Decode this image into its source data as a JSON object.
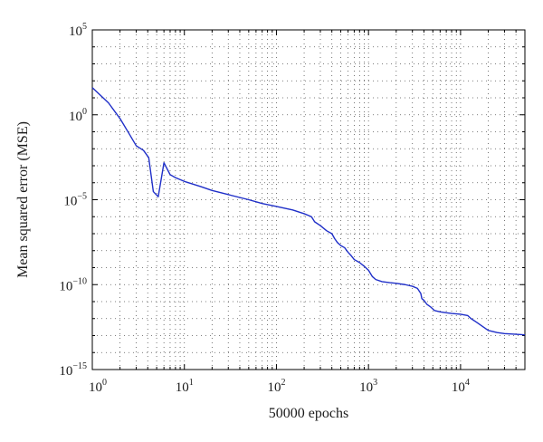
{
  "chart_data": {
    "type": "line",
    "title": "",
    "xlabel": "50000 epochs",
    "ylabel": "Mean squared error (MSE)",
    "x_scale": "log",
    "y_scale": "log",
    "xlim": [
      1,
      50000
    ],
    "ylim": [
      1e-15,
      100000
    ],
    "x_tick_labels": [
      {
        "base": "10",
        "exp": "0",
        "value": 1
      },
      {
        "base": "10",
        "exp": "1",
        "value": 10
      },
      {
        "base": "10",
        "exp": "2",
        "value": 100
      },
      {
        "base": "10",
        "exp": "3",
        "value": 1000
      },
      {
        "base": "10",
        "exp": "4",
        "value": 10000
      }
    ],
    "y_tick_labels": [
      {
        "base": "10",
        "exp": "5",
        "value": 100000
      },
      {
        "base": "10",
        "exp": "0",
        "value": 1
      },
      {
        "base": "10",
        "exp": "−5",
        "value": 1e-05
      },
      {
        "base": "10",
        "exp": "−10",
        "value": 1e-10
      },
      {
        "base": "10",
        "exp": "−15",
        "value": 1e-15
      }
    ],
    "grid": true,
    "colors": {
      "line": "#1f2fc8",
      "grid": "#555555",
      "axis": "#000000"
    },
    "series": [
      {
        "x": [
          1,
          1.5,
          2,
          2.5,
          3,
          3.6,
          4.1,
          4.6,
          5.2,
          6,
          7,
          8,
          10,
          15,
          20,
          30,
          50,
          70,
          100,
          150,
          200,
          240,
          260,
          300,
          350,
          400,
          430,
          460,
          500,
          550,
          600,
          650,
          700,
          800,
          900,
          1000,
          1100,
          1200,
          1400,
          1700,
          2000,
          2500,
          3000,
          3400,
          3700,
          3800,
          4000,
          4300,
          4700,
          5200,
          6000,
          7000,
          8000,
          10000,
          12000,
          13000,
          15000,
          18000,
          20000,
          25000,
          30000,
          40000,
          50000
        ],
        "y": [
          40,
          5,
          0.6,
          0.08,
          0.015,
          0.008,
          0.003,
          3e-05,
          1.5e-05,
          0.0015,
          0.0003,
          0.0002,
          0.00012,
          6e-05,
          3.5e-05,
          2e-05,
          1e-05,
          6e-06,
          4e-06,
          2.5e-06,
          1.5e-06,
          1e-06,
          5e-07,
          3e-07,
          1.5e-07,
          1e-07,
          5e-08,
          3e-08,
          2e-08,
          1.5e-08,
          8e-09,
          5e-09,
          3e-09,
          2e-09,
          1.2e-09,
          7e-10,
          3e-10,
          2e-10,
          1.5e-10,
          1.3e-10,
          1.2e-10,
          1e-10,
          8e-11,
          6e-11,
          3e-11,
          1.5e-11,
          1.2e-11,
          7e-12,
          5e-12,
          3e-12,
          2.5e-12,
          2.2e-12,
          2e-12,
          1.8e-12,
          1.5e-12,
          1e-12,
          6e-13,
          3e-13,
          2e-13,
          1.5e-13,
          1.3e-13,
          1.2e-13,
          1.1e-13
        ]
      }
    ]
  }
}
